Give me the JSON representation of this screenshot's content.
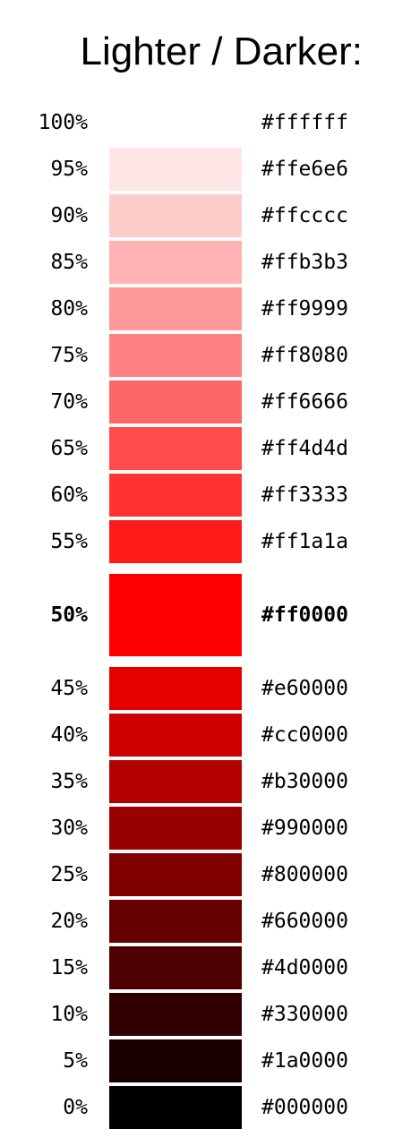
{
  "title": "Lighter / Darker:",
  "rows": [
    {
      "percent": "100%",
      "hex": "#ffffff",
      "color": "#ffffff",
      "swatch": false
    },
    {
      "percent": "95%",
      "hex": "#ffe6e6",
      "color": "#ffe6e6",
      "swatch": true
    },
    {
      "percent": "90%",
      "hex": "#ffcccc",
      "color": "#ffcccc",
      "swatch": true
    },
    {
      "percent": "85%",
      "hex": "#ffb3b3",
      "color": "#ffb3b3",
      "swatch": true
    },
    {
      "percent": "80%",
      "hex": "#ff9999",
      "color": "#ff9999",
      "swatch": true
    },
    {
      "percent": "75%",
      "hex": "#ff8080",
      "color": "#ff8080",
      "swatch": true
    },
    {
      "percent": "70%",
      "hex": "#ff6666",
      "color": "#ff6666",
      "swatch": true
    },
    {
      "percent": "65%",
      "hex": "#ff4d4d",
      "color": "#ff4d4d",
      "swatch": true
    },
    {
      "percent": "60%",
      "hex": "#ff3333",
      "color": "#ff3333",
      "swatch": true
    },
    {
      "percent": "55%",
      "hex": "#ff1a1a",
      "color": "#ff1a1a",
      "swatch": true
    },
    {
      "percent": "50%",
      "hex": "#ff0000",
      "color": "#ff0000",
      "swatch": true,
      "highlight": true
    },
    {
      "percent": "45%",
      "hex": "#e60000",
      "color": "#e60000",
      "swatch": true
    },
    {
      "percent": "40%",
      "hex": "#cc0000",
      "color": "#cc0000",
      "swatch": true
    },
    {
      "percent": "35%",
      "hex": "#b30000",
      "color": "#b30000",
      "swatch": true
    },
    {
      "percent": "30%",
      "hex": "#990000",
      "color": "#990000",
      "swatch": true
    },
    {
      "percent": "25%",
      "hex": "#800000",
      "color": "#800000",
      "swatch": true
    },
    {
      "percent": "20%",
      "hex": "#660000",
      "color": "#660000",
      "swatch": true
    },
    {
      "percent": "15%",
      "hex": "#4d0000",
      "color": "#4d0000",
      "swatch": true
    },
    {
      "percent": "10%",
      "hex": "#330000",
      "color": "#330000",
      "swatch": true
    },
    {
      "percent": "5%",
      "hex": "#1a0000",
      "color": "#1a0000",
      "swatch": true
    },
    {
      "percent": "0%",
      "hex": "#000000",
      "color": "#000000",
      "swatch": true
    }
  ]
}
